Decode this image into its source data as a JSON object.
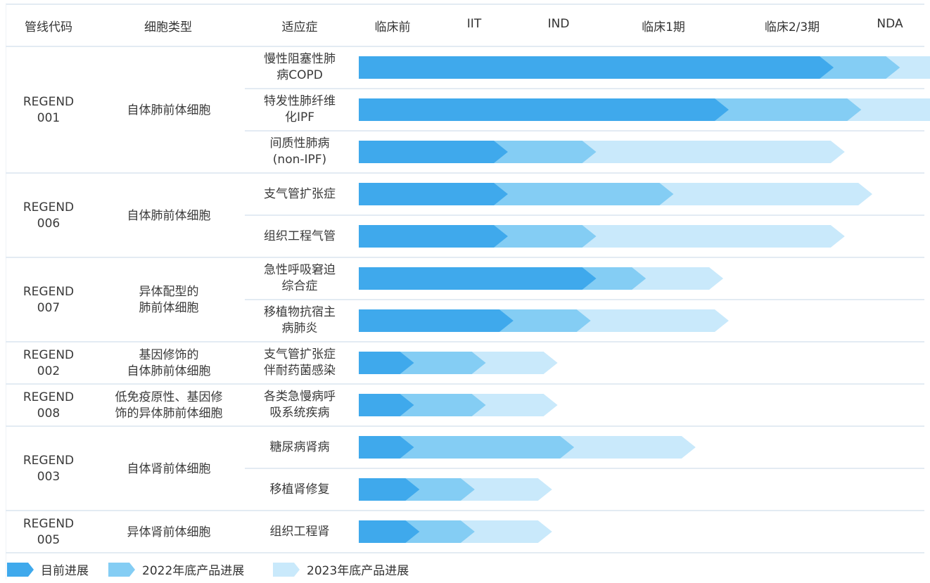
{
  "colors": {
    "current": "#3fa9ec",
    "y2022": "#84cdf4",
    "y2023": "#c9e9fb"
  },
  "header": {
    "code": "管线代码",
    "cell_type": "细胞类型",
    "indication": "适应症",
    "stages": [
      "临床前",
      "IIT",
      "IND",
      "临床1期",
      "临床2/3期",
      "NDA"
    ]
  },
  "legend": [
    {
      "label": "目前进展",
      "color_key": "current"
    },
    {
      "label": "2022年底产品进展",
      "color_key": "y2022"
    },
    {
      "label": "2023年底产品进展",
      "color_key": "y2023"
    }
  ],
  "groups": [
    {
      "code": [
        "REGEND",
        "001"
      ],
      "cell_type": [
        "自体肺前体细胞"
      ],
      "rows": 3
    },
    {
      "code": [
        "REGEND",
        "006"
      ],
      "cell_type": [
        "自体肺前体细胞"
      ],
      "rows": 2
    },
    {
      "code": [
        "REGEND",
        "007"
      ],
      "cell_type": [
        "异体配型的",
        "肺前体细胞"
      ],
      "rows": 2
    },
    {
      "code": [
        "REGEND",
        "002"
      ],
      "cell_type": [
        "基因修饰的",
        "自体肺前体细胞"
      ],
      "rows": 1
    },
    {
      "code": [
        "REGEND",
        "008"
      ],
      "cell_type": [
        "低免疫原性、基因修",
        "饰的异体肺前体细胞"
      ],
      "rows": 1
    },
    {
      "code": [
        "REGEND",
        "003"
      ],
      "cell_type": [
        "自体肾前体细胞"
      ],
      "rows": 2
    },
    {
      "code": [
        "REGEND",
        "005"
      ],
      "cell_type": [
        "异体肾前体细胞"
      ],
      "rows": 1
    }
  ],
  "chart_data": {
    "type": "bar",
    "orientation": "horizontal-stacked-progress",
    "x_axis_stages": [
      "临床前",
      "IIT",
      "IND",
      "临床1期",
      "临床2/3期",
      "NDA"
    ],
    "value_unit": "stage position (0 = start of 临床前, 5 = NDA)",
    "series": [
      {
        "name": "目前进展"
      },
      {
        "name": "2022年底产品进展"
      },
      {
        "name": "2023年底产品进展"
      }
    ],
    "rows": [
      {
        "indication": [
          "慢性阻塞性肺",
          "病COPD"
        ],
        "current": 4.3,
        "y2022": 4.9,
        "y2023": 5.7
      },
      {
        "indication": [
          "特发性肺纤维",
          "化IPF"
        ],
        "current": 3.35,
        "y2022": 4.55,
        "y2023": 5.45
      },
      {
        "indication": [
          "间质性肺病",
          "(non-IPF)"
        ],
        "current": 1.35,
        "y2022": 2.15,
        "y2023": 4.4
      },
      {
        "indication": [
          "支气管扩张症"
        ],
        "current": 1.35,
        "y2022": 2.85,
        "y2023": 4.65
      },
      {
        "indication": [
          "组织工程气管"
        ],
        "current": 1.35,
        "y2022": 2.15,
        "y2023": 4.4
      },
      {
        "indication": [
          "急性呼吸窘迫",
          "综合症"
        ],
        "current": 2.15,
        "y2022": 2.6,
        "y2023": 3.3
      },
      {
        "indication": [
          "移植物抗宿主",
          "病肺炎"
        ],
        "current": 1.4,
        "y2022": 2.1,
        "y2023": 3.35
      },
      {
        "indication": [
          "支气管扩张症",
          "伴耐药菌感染"
        ],
        "current": 0.5,
        "y2022": 1.15,
        "y2023": 1.8
      },
      {
        "indication": [
          "各类急慢病呼",
          "吸系统疾病"
        ],
        "current": 0.5,
        "y2022": 1.15,
        "y2023": 1.8
      },
      {
        "indication": [
          "糖尿病肾病"
        ],
        "current": 0.5,
        "y2022": 1.95,
        "y2023": 3.05
      },
      {
        "indication": [
          "移植肾修复"
        ],
        "current": 0.55,
        "y2022": 1.05,
        "y2023": 1.75
      },
      {
        "indication": [
          "组织工程肾"
        ],
        "current": 0.55,
        "y2022": 1.05,
        "y2023": 1.75
      }
    ]
  }
}
